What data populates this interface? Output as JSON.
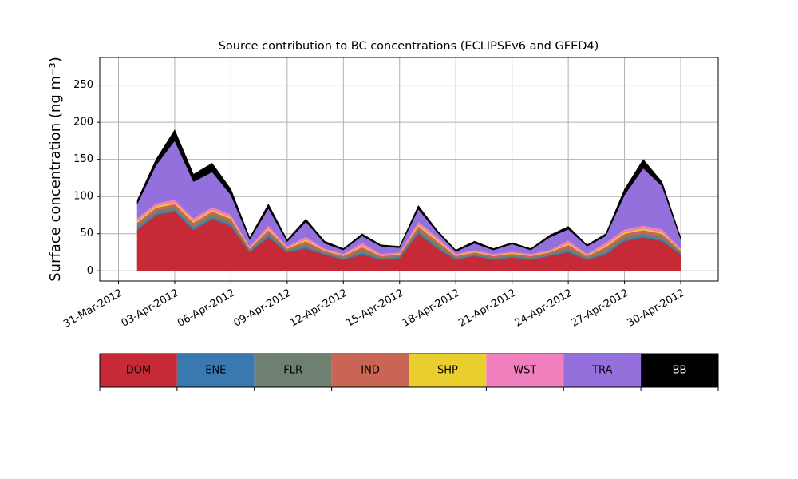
{
  "chart_data": {
    "type": "stacked_area",
    "title": "Source contribution to BC concentrations (ECLIPSEv6 and GFED4)",
    "y_label": "Surface concentration (ng m⁻³)",
    "x": [
      "2012-04-01",
      "2012-04-02",
      "2012-04-03",
      "2012-04-04",
      "2012-04-05",
      "2012-04-06",
      "2012-04-07",
      "2012-04-08",
      "2012-04-09",
      "2012-04-10",
      "2012-04-11",
      "2012-04-12",
      "2012-04-13",
      "2012-04-14",
      "2012-04-15",
      "2012-04-16",
      "2012-04-17",
      "2012-04-18",
      "2012-04-19",
      "2012-04-20",
      "2012-04-21",
      "2012-04-22",
      "2012-04-23",
      "2012-04-24",
      "2012-04-25",
      "2012-04-26",
      "2012-04-27",
      "2012-04-28",
      "2012-04-29",
      "2012-04-30"
    ],
    "series": [
      {
        "name": "DOM",
        "color": "#c62a37",
        "values": [
          55,
          75,
          80,
          55,
          70,
          60,
          25,
          45,
          25,
          30,
          22,
          15,
          22,
          15,
          17,
          50,
          30,
          15,
          20,
          15,
          18,
          15,
          20,
          25,
          15,
          22,
          40,
          45,
          40,
          22
        ]
      },
      {
        "name": "ENE",
        "color": "#3a78b0",
        "values": [
          2,
          2,
          2,
          2,
          2,
          2,
          1,
          2,
          1,
          2,
          1,
          1,
          2,
          1,
          1,
          2,
          2,
          1,
          1,
          1,
          1,
          1,
          1,
          2,
          1,
          2,
          2,
          2,
          2,
          1
        ]
      },
      {
        "name": "FLR",
        "color": "#6f8070",
        "values": [
          4,
          4,
          4,
          4,
          4,
          4,
          2,
          4,
          2,
          4,
          2,
          2,
          4,
          2,
          2,
          4,
          4,
          2,
          2,
          2,
          2,
          2,
          2,
          4,
          2,
          4,
          4,
          4,
          4,
          2
        ]
      },
      {
        "name": "IND",
        "color": "#c96554",
        "values": [
          4,
          4,
          4,
          4,
          4,
          4,
          2,
          4,
          2,
          4,
          2,
          2,
          4,
          2,
          2,
          4,
          4,
          2,
          2,
          2,
          2,
          2,
          2,
          4,
          2,
          4,
          4,
          4,
          4,
          2
        ]
      },
      {
        "name": "SHP",
        "color": "#e8cf2d",
        "values": [
          2,
          2,
          2,
          2,
          2,
          2,
          1,
          2,
          1,
          2,
          1,
          1,
          2,
          1,
          1,
          2,
          2,
          1,
          1,
          1,
          1,
          1,
          1,
          2,
          1,
          2,
          2,
          2,
          2,
          1
        ]
      },
      {
        "name": "WST",
        "color": "#f07fbd",
        "values": [
          4,
          4,
          4,
          4,
          4,
          4,
          2,
          4,
          2,
          4,
          2,
          2,
          4,
          2,
          2,
          4,
          4,
          2,
          2,
          2,
          2,
          2,
          2,
          4,
          2,
          4,
          4,
          4,
          4,
          2
        ]
      },
      {
        "name": "TRA",
        "color": "#9370db",
        "values": [
          19,
          51,
          79,
          49,
          47,
          26,
          9,
          23,
          6,
          20,
          7,
          5,
          9,
          10,
          6,
          17,
          6,
          3,
          9,
          5,
          10,
          5,
          17,
          15,
          10,
          9,
          46,
          77,
          58,
          12
        ]
      },
      {
        "name": "BB",
        "color": "#000000",
        "values": [
          5,
          8,
          15,
          10,
          12,
          8,
          3,
          6,
          3,
          4,
          3,
          2,
          3,
          2,
          2,
          5,
          3,
          2,
          3,
          2,
          2,
          2,
          3,
          4,
          2,
          3,
          8,
          12,
          6,
          3
        ]
      }
    ],
    "xlim": [
      "2012-03-30",
      "2012-05-02"
    ],
    "xticks": [
      {
        "value": "2012-03-31",
        "label": "31-Mar-2012"
      },
      {
        "value": "2012-04-03",
        "label": "03-Apr-2012"
      },
      {
        "value": "2012-04-06",
        "label": "06-Apr-2012"
      },
      {
        "value": "2012-04-09",
        "label": "09-Apr-2012"
      },
      {
        "value": "2012-04-12",
        "label": "12-Apr-2012"
      },
      {
        "value": "2012-04-15",
        "label": "15-Apr-2012"
      },
      {
        "value": "2012-04-18",
        "label": "18-Apr-2012"
      },
      {
        "value": "2012-04-21",
        "label": "21-Apr-2012"
      },
      {
        "value": "2012-04-24",
        "label": "24-Apr-2012"
      },
      {
        "value": "2012-04-27",
        "label": "27-Apr-2012"
      },
      {
        "value": "2012-04-30",
        "label": "30-Apr-2012"
      }
    ],
    "ylim": [
      -13.7,
      287.2
    ],
    "yticks": [
      0,
      50,
      100,
      150,
      200,
      250
    ],
    "grid": true
  }
}
